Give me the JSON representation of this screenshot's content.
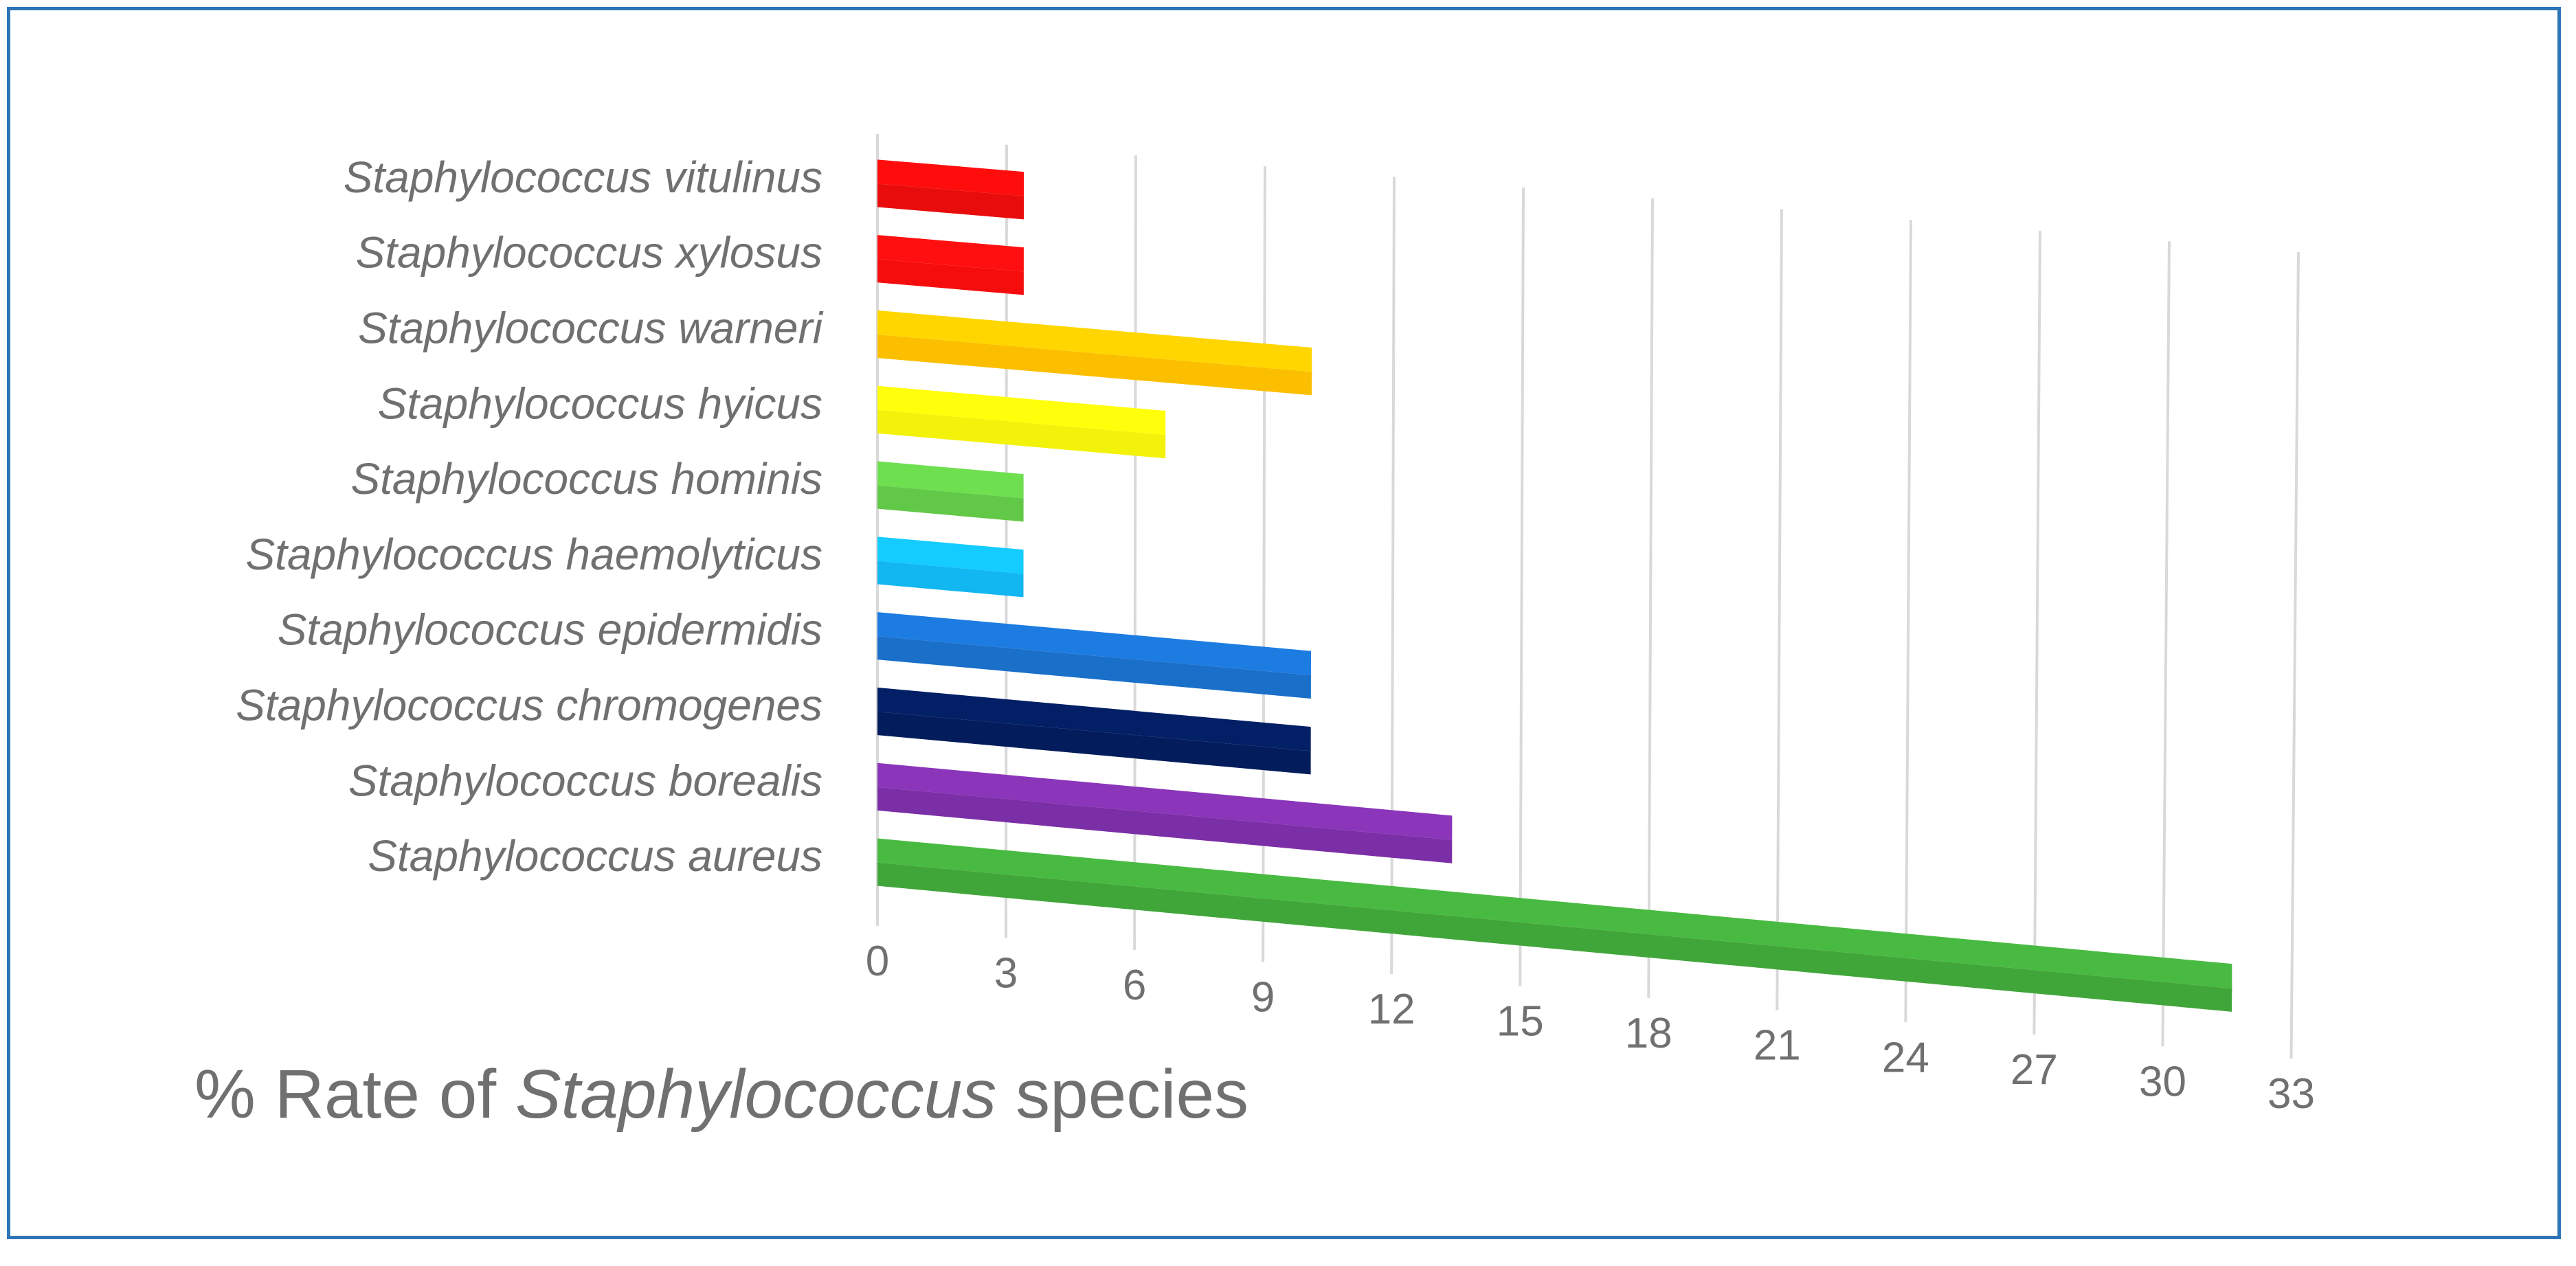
{
  "chart_data": {
    "type": "bar",
    "orientation": "horizontal",
    "style": "3d",
    "title_parts": [
      "% Rate of ",
      "Staphylococcus",
      " species"
    ],
    "categories": [
      "Staphylococcus aureus",
      "Staphylococcus borealis",
      "Staphylococcus chromogenes",
      "Staphylococcus epidermidis",
      "Staphylococcus haemolyticus",
      "Staphylococcus hominis",
      "Staphylococcus hyicus",
      "Staphylococcus warneri",
      "Staphylococcus xylosus",
      "Staphylococcus vitulinus"
    ],
    "values": [
      31.6,
      13.4,
      10.1,
      10.1,
      3.4,
      3.4,
      6.7,
      10.1,
      3.4,
      3.4
    ],
    "colors": [
      "#41a63a",
      "#7b2fa6",
      "#031d5c",
      "#1a6fc9",
      "#12b6f0",
      "#62c847",
      "#f2f20a",
      "#fcbf00",
      "#f50d0d",
      "#e80c0c"
    ],
    "xlim": [
      0,
      33
    ],
    "ticks": [
      "0",
      "3",
      "6",
      "9",
      "12",
      "15",
      "18",
      "21",
      "24",
      "27",
      "30",
      "33"
    ],
    "grid": true
  }
}
